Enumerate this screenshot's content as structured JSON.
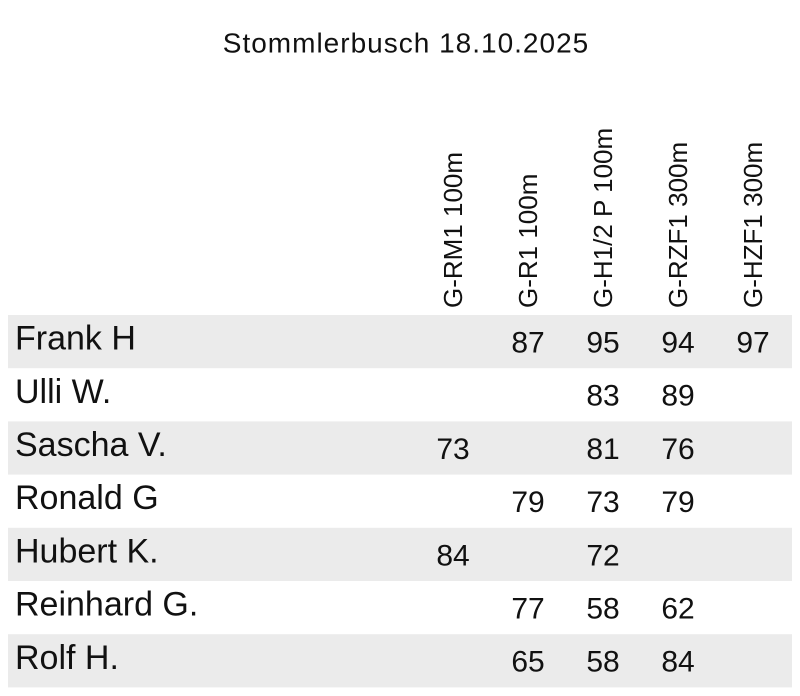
{
  "title": "Stommlerbusch 18.10.2025",
  "table": {
    "columns": [
      "G-RM1 100m",
      "G-R1 100m",
      "G-H1/2 P 100m",
      "G-RZF1 300m",
      "G-HZF1 300m"
    ],
    "rows": [
      {
        "name": "Frank H",
        "scores": [
          null,
          87,
          95,
          94,
          97
        ]
      },
      {
        "name": "Ulli W.",
        "scores": [
          null,
          null,
          83,
          89,
          null
        ]
      },
      {
        "name": "Sascha V.",
        "scores": [
          73,
          null,
          81,
          76,
          null
        ]
      },
      {
        "name": "Ronald G",
        "scores": [
          null,
          79,
          73,
          79,
          null
        ]
      },
      {
        "name": "Hubert K.",
        "scores": [
          84,
          null,
          72,
          null,
          null
        ]
      },
      {
        "name": "Reinhard G.",
        "scores": [
          null,
          77,
          58,
          62,
          null
        ]
      },
      {
        "name": "Rolf H.",
        "scores": [
          null,
          65,
          58,
          84,
          null
        ]
      }
    ]
  }
}
